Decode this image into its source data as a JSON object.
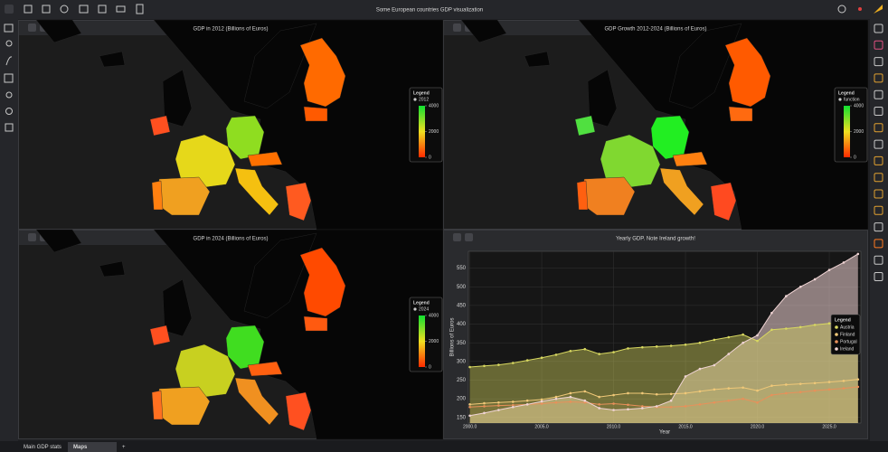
{
  "header": {
    "title": "Some European countries GDP visualization"
  },
  "maps": [
    {
      "title": "GDP in 2012 (Billions of Euros)",
      "legend": {
        "title": "Legend",
        "entry": "2012",
        "range": [
          0,
          4000
        ],
        "ticks": [
          0,
          2000,
          4000
        ]
      }
    },
    {
      "title": "GDP Growth 2012-2024 (Billions of Euros)",
      "legend": {
        "title": "Legend",
        "entry": "function",
        "range": [
          0,
          4000
        ],
        "ticks": [
          0,
          2000,
          4000
        ]
      }
    },
    {
      "title": "GDP in 2024 (Billions of Euros)",
      "legend": {
        "title": "Legend",
        "entry": "2024",
        "range": [
          0,
          4000
        ],
        "ticks": [
          0,
          2000,
          4000
        ]
      }
    }
  ],
  "chart_data": {
    "type": "area",
    "title": "Yearly GDP. Note Ireland growth!",
    "x_label": "Year",
    "y_label": "Billions of Euros",
    "x": [
      2000,
      2001,
      2002,
      2003,
      2004,
      2005,
      2006,
      2007,
      2008,
      2009,
      2010,
      2011,
      2012,
      2013,
      2014,
      2015,
      2016,
      2017,
      2018,
      2019,
      2020,
      2021,
      2022,
      2023,
      2024,
      2025,
      2026,
      2027
    ],
    "series": [
      {
        "name": "Austria",
        "color": "#d8d860",
        "values": [
          285,
          288,
          291,
          296,
          303,
          310,
          318,
          328,
          333,
          320,
          325,
          335,
          338,
          340,
          342,
          345,
          350,
          358,
          365,
          372,
          355,
          385,
          388,
          392,
          398,
          402,
          408,
          412
        ]
      },
      {
        "name": "Finland",
        "color": "#f0c878",
        "values": [
          185,
          188,
          190,
          192,
          195,
          198,
          205,
          215,
          220,
          205,
          210,
          215,
          215,
          212,
          213,
          215,
          220,
          225,
          228,
          230,
          222,
          235,
          238,
          240,
          242,
          245,
          248,
          252
        ]
      },
      {
        "name": "Portugal",
        "color": "#e8905a",
        "values": [
          178,
          180,
          182,
          183,
          185,
          187,
          190,
          192,
          190,
          185,
          187,
          184,
          180,
          178,
          178,
          180,
          185,
          190,
          195,
          200,
          190,
          210,
          215,
          218,
          222,
          225,
          228,
          232
        ]
      },
      {
        "name": "Ireland",
        "color": "#f0d4d4",
        "values": [
          155,
          162,
          170,
          178,
          185,
          193,
          200,
          205,
          195,
          175,
          170,
          172,
          175,
          180,
          195,
          260,
          280,
          290,
          320,
          350,
          370,
          430,
          475,
          500,
          520,
          545,
          565,
          588
        ]
      }
    ],
    "xlim": [
      1999.9,
      2027.2
    ],
    "ylim": [
      135,
      595
    ],
    "xticks": [
      {
        "value": 2000,
        "label": "2000.0"
      },
      {
        "value": 2005,
        "label": "2005.0"
      },
      {
        "value": 2010,
        "label": "2010.0"
      },
      {
        "value": 2015,
        "label": "2015.0"
      },
      {
        "value": 2020,
        "label": "2020.0"
      },
      {
        "value": 2025,
        "label": "2025.0"
      }
    ],
    "yticks": [
      150,
      200,
      250,
      300,
      350,
      400,
      450,
      500,
      550
    ],
    "grid": true,
    "legend_title": "Legend",
    "legend": "right"
  },
  "tabs": [
    "Main GDP stats",
    "Maps",
    "+"
  ]
}
